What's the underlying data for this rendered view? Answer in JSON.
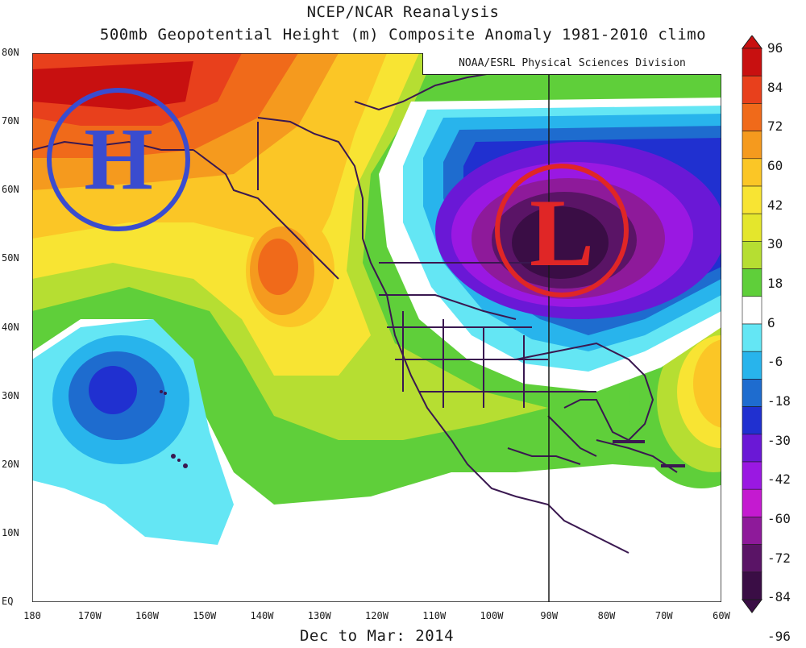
{
  "header": {
    "title": "NCEP/NCAR Reanalysis",
    "subtitle": "500mb Geopotential Height (m) Composite Anomaly 1981-2010 climo"
  },
  "credit": "NOAA/ESRL Physical Sciences Division",
  "footer": "Dec to Mar: 2014",
  "axes": {
    "lat_labels": [
      "80N",
      "70N",
      "60N",
      "50N",
      "40N",
      "30N",
      "20N",
      "10N",
      "EQ"
    ],
    "lon_labels": [
      "180",
      "170W",
      "160W",
      "150W",
      "140W",
      "130W",
      "120W",
      "110W",
      "100W",
      "90W",
      "80W",
      "70W",
      "60W"
    ],
    "lat_range": [
      0,
      80
    ],
    "lon_range": [
      -180,
      -60
    ]
  },
  "colorbar": {
    "labels": [
      "96",
      "84",
      "72",
      "60",
      "42",
      "30",
      "18",
      "6",
      "-6",
      "-18",
      "-30",
      "-42",
      "-60",
      "-72",
      "-84",
      "-96"
    ],
    "colors": [
      "#c81010",
      "#e8401c",
      "#f06a1a",
      "#f59a1e",
      "#fbc626",
      "#f8e433",
      "#e4e62c",
      "#b6de32",
      "#5fcf3a",
      "#ffffff",
      "#64e6f4",
      "#28b4ec",
      "#1e6ccf",
      "#2030d0",
      "#6a18d6",
      "#9a18e2",
      "#c41ad0",
      "#8e1a9a",
      "#5a1466",
      "#3a0d45"
    ]
  },
  "annotations": {
    "high_letter": "H",
    "low_letter": "L"
  },
  "map_features": {
    "ridge_center": {
      "lat": 72,
      "lon": -170
    },
    "trough_center": {
      "lat": 53,
      "lon": -88
    },
    "secondary_ridge": {
      "lat": 49,
      "lon": -138
    },
    "negative_anomaly_pacific": {
      "lat": 32,
      "lon": -165
    }
  }
}
